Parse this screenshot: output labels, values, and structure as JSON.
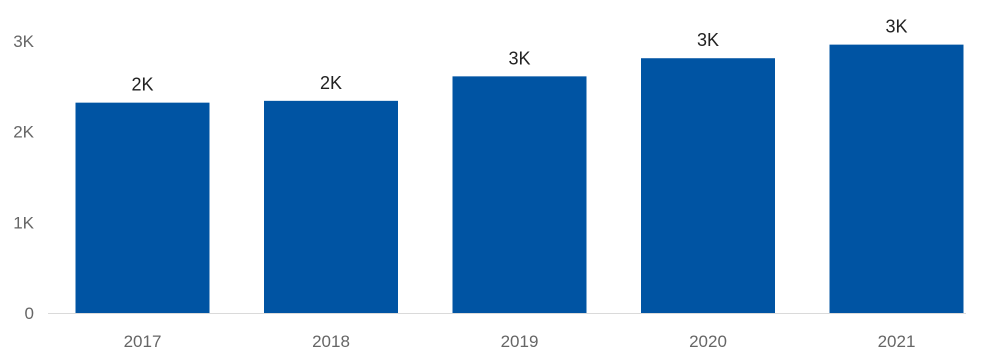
{
  "chart_data": {
    "type": "bar",
    "categories": [
      "2017",
      "2018",
      "2019",
      "2020",
      "2021"
    ],
    "values": [
      2320,
      2340,
      2610,
      2810,
      2960
    ],
    "data_labels": [
      "2K",
      "2K",
      "3K",
      "3K",
      "3K"
    ],
    "y_ticks": [
      {
        "value": 0,
        "label": "0"
      },
      {
        "value": 1000,
        "label": "1K"
      },
      {
        "value": 2000,
        "label": "2K"
      },
      {
        "value": 3000,
        "label": "3K"
      }
    ],
    "ylim": [
      0,
      3000
    ],
    "title": "",
    "xlabel": "",
    "ylabel": "",
    "grid": false,
    "legend": "none",
    "bar_color": "#0054A3",
    "axis_line_color": "#DADADA"
  }
}
